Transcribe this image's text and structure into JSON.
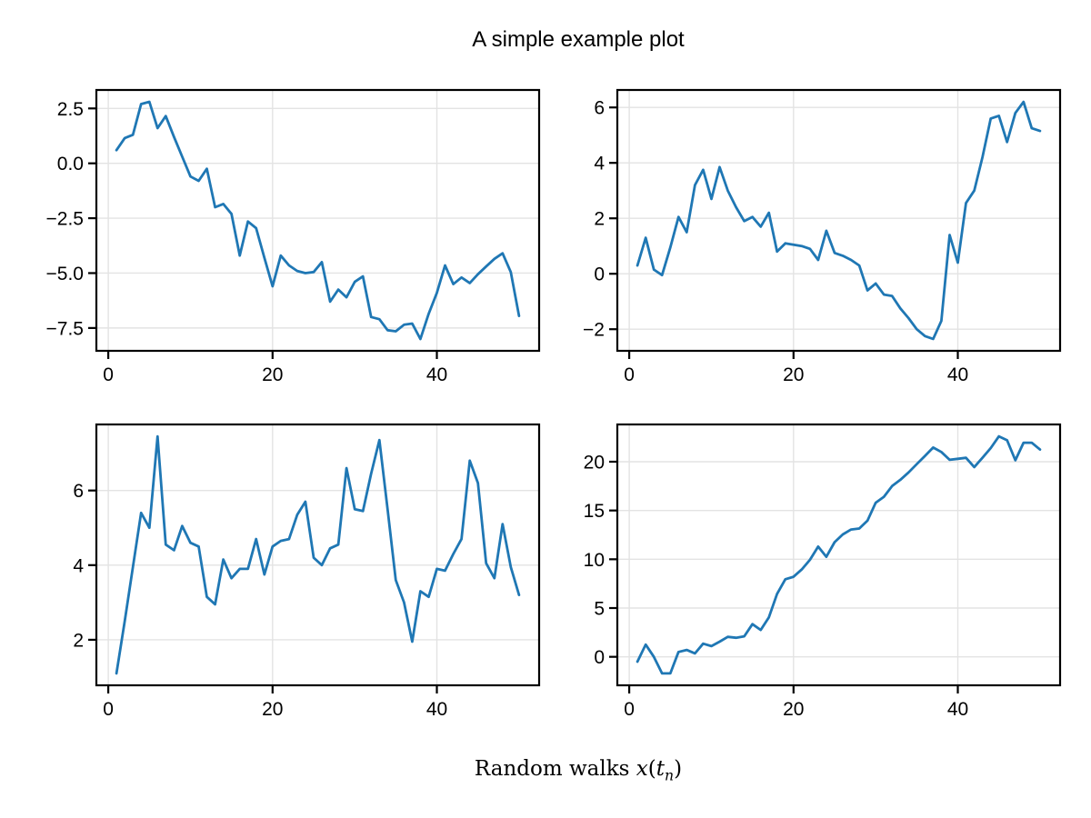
{
  "figure": {
    "title": "A simple example plot",
    "xlabel": {
      "full": "Random walks x(t_n)",
      "prefix": "Random walks ",
      "math_x": "x",
      "paren_open": "(",
      "math_t": "t",
      "sub": "n",
      "paren_close": ")"
    }
  },
  "style": {
    "line_color": "#1f77b4",
    "grid_color": "#e3e3e3",
    "spine_color": "#000000",
    "text_color": "#000000",
    "background": "#ffffff"
  },
  "chart_data": [
    {
      "type": "line",
      "position": "top-left",
      "title": "",
      "xlim": [
        -1.45,
        52.45
      ],
      "xticks": [
        0,
        20,
        40
      ],
      "xtick_labels": [
        "0",
        "20",
        "40"
      ],
      "ylim": [
        -8.54,
        3.34
      ],
      "yticks": [
        2.5,
        0.0,
        -2.5,
        -5.0,
        -7.5
      ],
      "ytick_labels": [
        "2.5",
        "0.0",
        "−2.5",
        "−5.0",
        "−7.5"
      ],
      "grid": true,
      "x": [
        1,
        2,
        3,
        4,
        5,
        6,
        7,
        8,
        9,
        10,
        11,
        12,
        13,
        14,
        15,
        16,
        17,
        18,
        19,
        20,
        21,
        22,
        23,
        24,
        25,
        26,
        27,
        28,
        29,
        30,
        31,
        32,
        33,
        34,
        35,
        36,
        37,
        38,
        39,
        40,
        41,
        42,
        43,
        44,
        45,
        46,
        47,
        48,
        49,
        50
      ],
      "y": [
        0.6,
        1.15,
        1.3,
        2.7,
        2.8,
        1.6,
        2.15,
        1.2,
        0.3,
        -0.6,
        -0.8,
        -0.25,
        -2.0,
        -1.85,
        -2.3,
        -4.2,
        -2.65,
        -2.95,
        -4.3,
        -5.6,
        -4.2,
        -4.65,
        -4.9,
        -5.0,
        -4.95,
        -4.5,
        -6.3,
        -5.75,
        -6.1,
        -5.4,
        -5.15,
        -7.0,
        -7.1,
        -7.6,
        -7.65,
        -7.35,
        -7.3,
        -8.0,
        -6.85,
        -5.9,
        -4.65,
        -5.5,
        -5.2,
        -5.45,
        -5.05,
        -4.7,
        -4.35,
        -4.1,
        -4.95,
        -6.95
      ]
    },
    {
      "type": "line",
      "position": "top-right",
      "title": "",
      "xlim": [
        -1.45,
        52.45
      ],
      "xticks": [
        0,
        20,
        40
      ],
      "xtick_labels": [
        "0",
        "20",
        "40"
      ],
      "ylim": [
        -2.78,
        6.63
      ],
      "yticks": [
        6,
        4,
        2,
        0,
        -2
      ],
      "ytick_labels": [
        "6",
        "4",
        "2",
        "0",
        "−2"
      ],
      "grid": true,
      "x": [
        1,
        2,
        3,
        4,
        5,
        6,
        7,
        8,
        9,
        10,
        11,
        12,
        13,
        14,
        15,
        16,
        17,
        18,
        19,
        20,
        21,
        22,
        23,
        24,
        25,
        26,
        27,
        28,
        29,
        30,
        31,
        32,
        33,
        34,
        35,
        36,
        37,
        38,
        39,
        40,
        41,
        42,
        43,
        44,
        45,
        46,
        47,
        48,
        49,
        50
      ],
      "y": [
        0.3,
        1.3,
        0.15,
        -0.05,
        0.95,
        2.05,
        1.5,
        3.2,
        3.75,
        2.7,
        3.85,
        3.0,
        2.4,
        1.9,
        2.05,
        1.7,
        2.2,
        0.8,
        1.1,
        1.05,
        1.0,
        0.9,
        0.5,
        1.55,
        0.75,
        0.65,
        0.5,
        0.3,
        -0.6,
        -0.35,
        -0.75,
        -0.8,
        -1.25,
        -1.6,
        -2.0,
        -2.25,
        -2.35,
        -1.7,
        1.4,
        0.4,
        2.55,
        3.0,
        4.2,
        5.6,
        5.7,
        4.75,
        5.8,
        6.2,
        5.25,
        5.15
      ]
    },
    {
      "type": "line",
      "position": "bottom-left",
      "title": "",
      "xlim": [
        -1.45,
        52.45
      ],
      "xticks": [
        0,
        20,
        40
      ],
      "xtick_labels": [
        "0",
        "20",
        "40"
      ],
      "ylim": [
        0.78,
        7.77
      ],
      "yticks": [
        6,
        4,
        2
      ],
      "ytick_labels": [
        "6",
        "4",
        "2"
      ],
      "grid": true,
      "x": [
        1,
        2,
        3,
        4,
        5,
        6,
        7,
        8,
        9,
        10,
        11,
        12,
        13,
        14,
        15,
        16,
        17,
        18,
        19,
        20,
        21,
        22,
        23,
        24,
        25,
        26,
        27,
        28,
        29,
        30,
        31,
        32,
        33,
        34,
        35,
        36,
        37,
        38,
        39,
        40,
        41,
        42,
        43,
        44,
        45,
        46,
        47,
        48,
        49,
        50
      ],
      "y": [
        1.1,
        2.5,
        3.95,
        5.4,
        5.0,
        7.45,
        4.55,
        4.4,
        5.05,
        4.6,
        4.5,
        3.15,
        2.95,
        4.15,
        3.65,
        3.9,
        3.9,
        4.7,
        3.75,
        4.5,
        4.65,
        4.7,
        5.35,
        5.7,
        4.2,
        4.0,
        4.45,
        4.55,
        6.6,
        5.5,
        5.45,
        6.45,
        7.35,
        5.5,
        3.6,
        3.0,
        1.95,
        3.3,
        3.15,
        3.9,
        3.85,
        4.3,
        4.7,
        6.8,
        6.2,
        4.05,
        3.65,
        5.1,
        3.95,
        3.2
      ]
    },
    {
      "type": "line",
      "position": "bottom-right",
      "title": "",
      "xlim": [
        -1.45,
        52.45
      ],
      "xticks": [
        0,
        20,
        40
      ],
      "xtick_labels": [
        "0",
        "20",
        "40"
      ],
      "ylim": [
        -2.92,
        23.82
      ],
      "yticks": [
        20,
        15,
        10,
        5,
        0
      ],
      "ytick_labels": [
        "20",
        "15",
        "10",
        "5",
        "0"
      ],
      "grid": true,
      "x": [
        1,
        2,
        3,
        4,
        5,
        6,
        7,
        8,
        9,
        10,
        11,
        12,
        13,
        14,
        15,
        16,
        17,
        18,
        19,
        20,
        21,
        22,
        23,
        24,
        25,
        26,
        27,
        28,
        29,
        30,
        31,
        32,
        33,
        34,
        35,
        36,
        37,
        38,
        39,
        40,
        41,
        42,
        43,
        44,
        45,
        46,
        47,
        48,
        49,
        50
      ],
      "y": [
        -0.5,
        1.25,
        0.0,
        -1.7,
        -1.7,
        0.5,
        0.7,
        0.35,
        1.35,
        1.1,
        1.55,
        2.05,
        1.95,
        2.1,
        3.35,
        2.75,
        4.05,
        6.45,
        7.95,
        8.2,
        8.95,
        9.95,
        11.3,
        10.25,
        11.75,
        12.55,
        13.05,
        13.15,
        13.95,
        15.8,
        16.4,
        17.5,
        18.15,
        18.9,
        19.75,
        20.6,
        21.45,
        21.0,
        20.2,
        20.3,
        20.4,
        19.45,
        20.4,
        21.4,
        22.6,
        22.2,
        20.15,
        21.95,
        21.95,
        21.25
      ]
    }
  ]
}
